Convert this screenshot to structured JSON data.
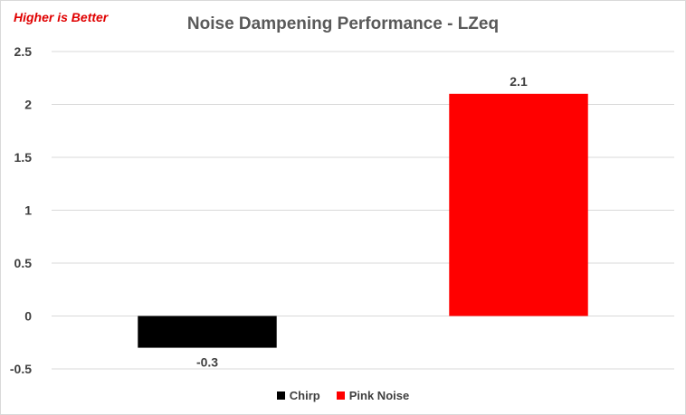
{
  "note": "Higher is Better",
  "chart_data": {
    "type": "bar",
    "title": "Noise Dampening Performance - LZeq",
    "xlabel": "",
    "ylabel": "",
    "ylim": [
      -0.5,
      2.5
    ],
    "yticks": [
      "-0.5",
      "0",
      "0.5",
      "1",
      "1.5",
      "2",
      "2.5"
    ],
    "grid": true,
    "legend_position": "bottom",
    "series": [
      {
        "name": "Chirp",
        "value": -0.3,
        "label": "-0.3",
        "color": "#000000"
      },
      {
        "name": "Pink Noise",
        "value": 2.1,
        "label": "2.1",
        "color": "#ff0000"
      }
    ]
  }
}
